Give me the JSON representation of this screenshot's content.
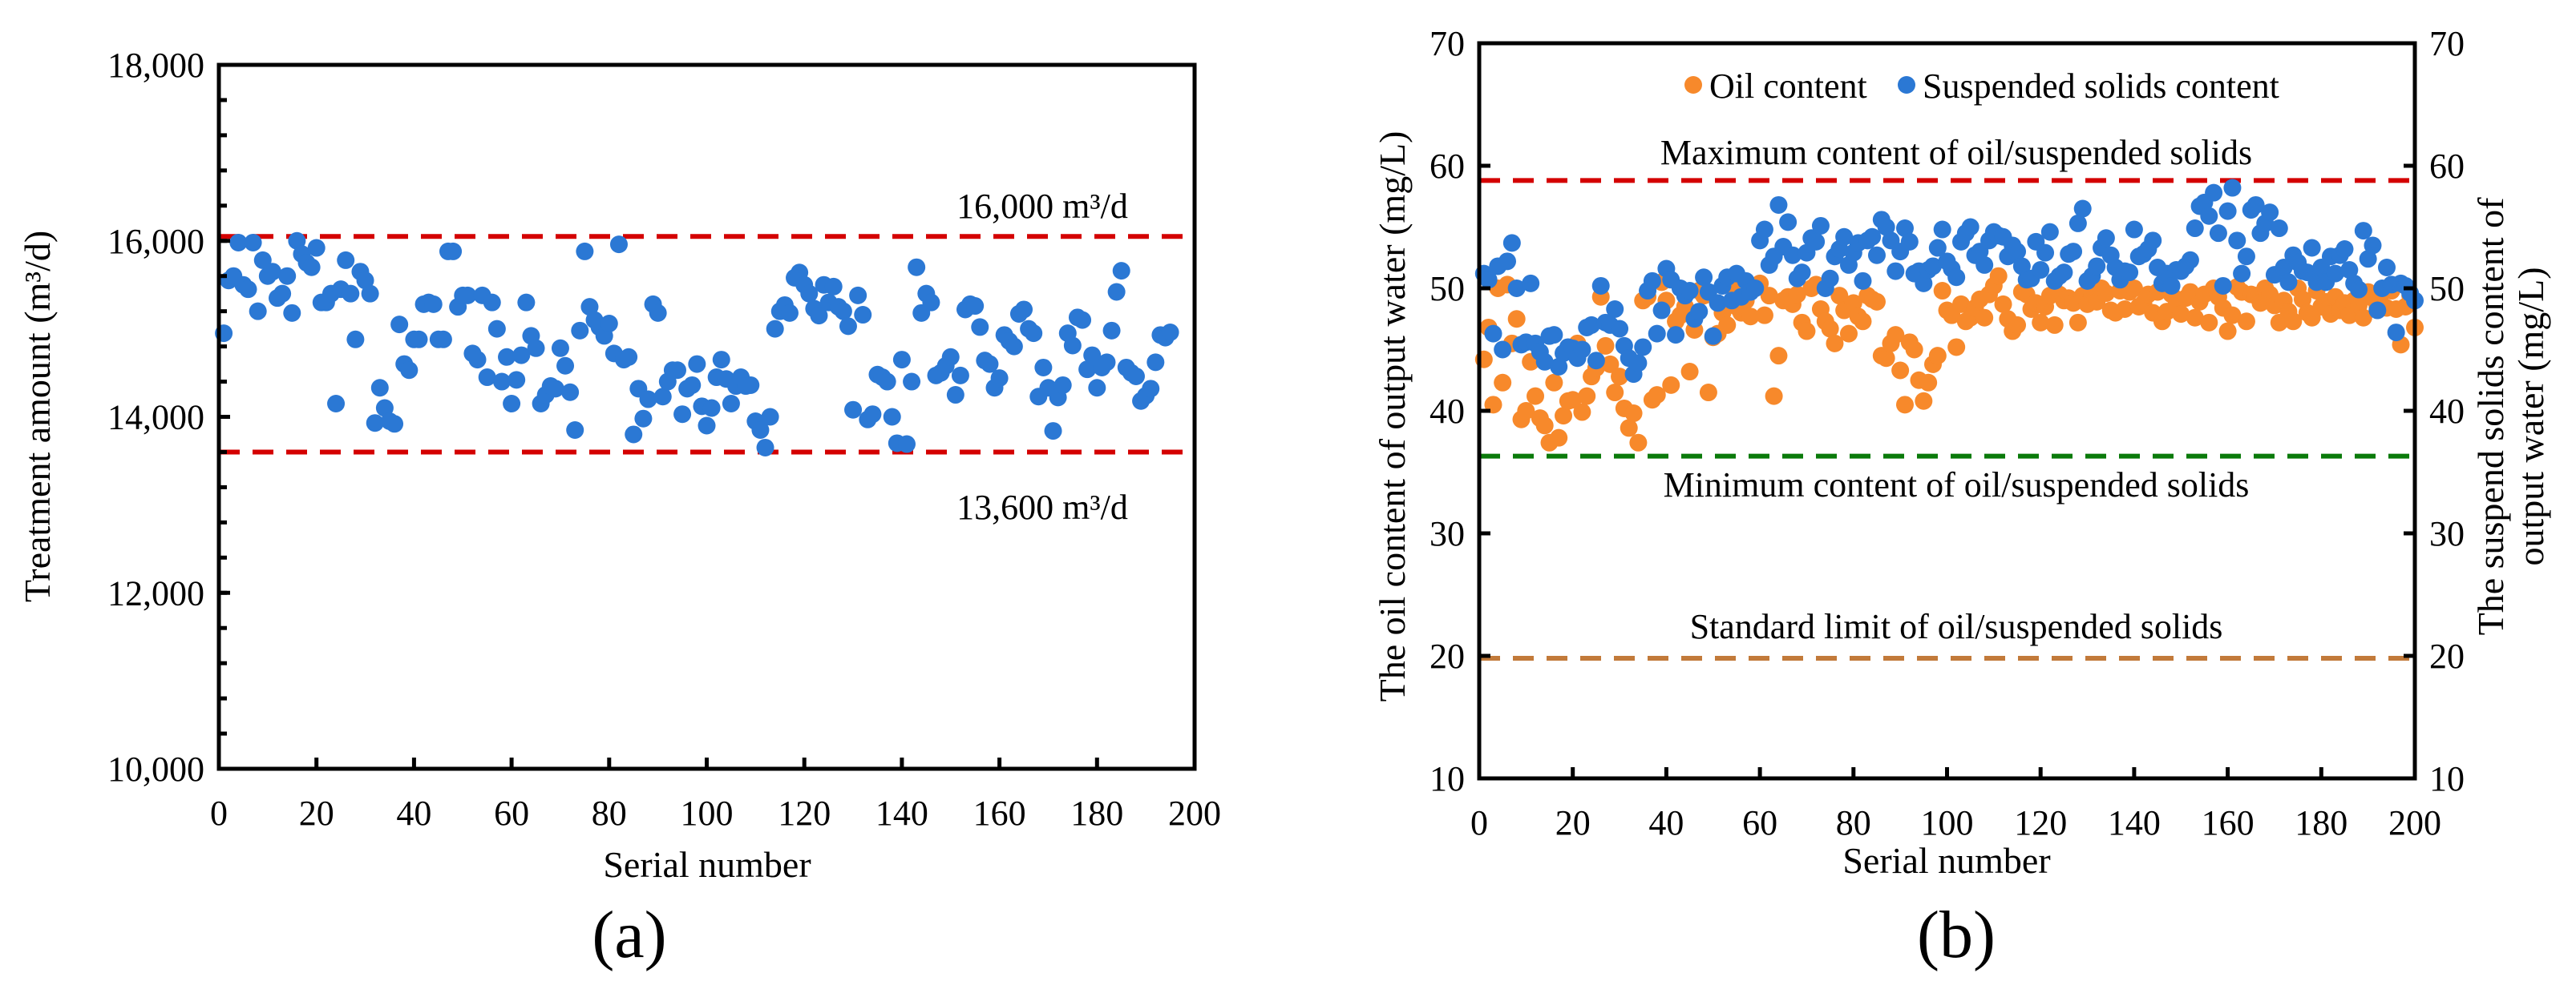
{
  "colors": {
    "blue": "#2B78D4",
    "orange": "#F7892B",
    "red": "#D40000",
    "green": "#0A7A0A",
    "brown": "#C27A3A"
  },
  "chart_data": [
    {
      "type": "scatter",
      "panel_label": "(a)",
      "xlabel": "Serial number",
      "ylabel": "Treatment amount (m³/d)",
      "xlim": [
        0,
        200
      ],
      "ylim": [
        10000,
        18000
      ],
      "xticks": [
        0,
        20,
        40,
        60,
        80,
        100,
        120,
        140,
        160,
        180,
        200
      ],
      "yticks": [
        10000,
        12000,
        14000,
        16000,
        18000
      ],
      "ytick_labels": [
        "10,000",
        "12,000",
        "14,000",
        "16,000",
        "18,000"
      ],
      "grid": false,
      "reference_lines": [
        {
          "value": 16050,
          "label": "16,000 m³/d",
          "color": "red"
        },
        {
          "value": 13600,
          "label": "13,600 m³/d",
          "color": "red"
        }
      ],
      "series": [
        {
          "name": "Treatment amount",
          "color": "blue",
          "values": [
            14950,
            15550,
            15600,
            15980,
            15500,
            15450,
            15980,
            15200,
            15780,
            15600,
            15650,
            15350,
            15400,
            15600,
            15180,
            16000,
            15850,
            15750,
            15700,
            15920,
            15300,
            15300,
            15400,
            14150,
            15450,
            15780,
            15400,
            14880,
            15650,
            15550,
            15400,
            13930,
            14330,
            14100,
            13950,
            13920,
            15050,
            14600,
            14530,
            14880,
            14880,
            15280,
            15300,
            15280,
            14880,
            14880,
            15880,
            15880,
            15250,
            15380,
            15380,
            14720,
            14650,
            15380,
            14450,
            15300,
            15000,
            14400,
            14680,
            14150,
            14420,
            14700,
            15300,
            14920,
            14780,
            14150,
            14250,
            14350,
            14320,
            14780,
            14580,
            14280,
            13850,
            14980,
            15880,
            15250,
            15100,
            15020,
            14920,
            15060,
            14720,
            15960,
            14650,
            14680,
            13800,
            14320,
            13980,
            14200,
            15280,
            15180,
            14230,
            14400,
            14530,
            14530,
            14030,
            14320,
            14360,
            14600,
            14120,
            13900,
            14100,
            14450,
            14650,
            14430,
            14150,
            14350,
            14450,
            14350,
            14360,
            13950,
            13850,
            13650,
            14000,
            15000,
            15200,
            15270,
            15180,
            15580,
            15640,
            15500,
            15400,
            15230,
            15150,
            15500,
            15300,
            15480,
            15250,
            15200,
            15030,
            14080,
            15380,
            15160,
            13970,
            14030,
            14480,
            14450,
            14400,
            14000,
            13700,
            14650,
            13690,
            14400,
            15700,
            15180,
            15400,
            15300,
            14470,
            14500,
            14580,
            14680,
            14250,
            14470,
            15220,
            15280,
            15260,
            15020,
            14640,
            14600,
            14330,
            14440,
            14930,
            14860,
            14800,
            15170,
            15220,
            15000,
            14950,
            14230,
            14560,
            14330,
            13840,
            14220,
            14360,
            14950,
            14810,
            15130,
            15100,
            14540,
            14700,
            14330,
            14560,
            14620,
            14980,
            15420,
            15660,
            14560,
            14500,
            14460,
            14180,
            14240,
            14320,
            14620,
            14930,
            14900,
            14960
          ]
        }
      ]
    },
    {
      "type": "scatter",
      "panel_label": "(b)",
      "xlabel": "Serial number",
      "ylabel": "The oil content of output water (mg/L)",
      "ylabel_right": [
        "The suspend solids content of",
        "output water (mg/L)"
      ],
      "xlim": [
        0,
        200
      ],
      "ylim": [
        10,
        70
      ],
      "xticks": [
        0,
        20,
        40,
        60,
        80,
        100,
        120,
        140,
        160,
        180,
        200
      ],
      "yticks": [
        10,
        20,
        30,
        40,
        50,
        60,
        70
      ],
      "grid": false,
      "legend_position": "top-center",
      "reference_lines": [
        {
          "value": 58.8,
          "label": "Maximum content of oil/suspended solids",
          "color": "red"
        },
        {
          "value": 36.3,
          "label": "Minimum content of oil/suspended solids",
          "color": "green"
        },
        {
          "value": 19.8,
          "label": "Standard limit of oil/suspended solids",
          "color": "brown"
        }
      ],
      "series": [
        {
          "name": "Oil content",
          "color": "orange",
          "values": [
            44.2,
            46.8,
            40.5,
            50.0,
            42.3,
            50.3,
            45.5,
            47.5,
            39.3,
            40.0,
            44.0,
            41.2,
            39.4,
            38.8,
            37.4,
            42.3,
            37.8,
            39.6,
            40.8,
            40.9,
            45.5,
            39.9,
            41.2,
            42.8,
            43.5,
            49.3,
            45.3,
            43.8,
            41.5,
            42.8,
            40.2,
            38.6,
            39.8,
            37.4,
            49.0,
            49.3,
            40.9,
            41.3,
            50.5,
            49.0,
            42.1,
            47.3,
            47.8,
            48.5,
            43.2,
            46.6,
            49.8,
            49.4,
            41.5,
            46.0,
            46.3,
            48.0,
            47.0,
            50.2,
            48.5,
            48.0,
            49.0,
            47.7,
            50.0,
            50.4,
            47.8,
            49.4,
            41.2,
            44.5,
            49.0,
            49.3,
            48.7,
            49.5,
            47.2,
            46.5,
            50.0,
            50.3,
            48.3,
            47.3,
            46.7,
            45.5,
            49.4,
            48.2,
            46.3,
            48.8,
            47.7,
            47.3,
            49.4,
            49.1,
            48.9,
            44.5,
            44.3,
            45.5,
            46.2,
            43.3,
            40.5,
            45.6,
            45.0,
            42.5,
            40.8,
            42.3,
            43.8,
            44.5,
            49.8,
            48.2,
            47.8,
            45.2,
            48.7,
            47.3,
            47.6,
            48.4,
            49.1,
            47.6,
            49.5,
            50.2,
            51.0,
            48.7,
            47.5,
            46.5,
            47.0,
            49.7,
            49.5,
            48.3,
            48.8,
            47.2,
            48.5,
            49.4,
            47.0,
            49.5,
            49.0,
            49.2,
            48.8,
            47.2,
            49.4,
            48.7,
            49.5,
            48.9,
            50.0,
            49.6,
            48.2,
            48.0,
            49.8,
            48.3,
            49.7,
            50.0,
            48.5,
            48.8,
            49.5,
            48.0,
            49.7,
            47.3,
            48.1,
            49.5,
            48.6,
            47.9,
            49.2,
            49.7,
            47.6,
            48.9,
            49.5,
            47.2,
            50.0,
            49.3,
            48.4,
            46.5,
            47.8,
            50.1,
            49.7,
            47.3,
            49.5,
            49.4,
            48.8,
            50.0,
            49.5,
            48.6,
            47.2,
            49.0,
            48.1,
            47.3,
            50.0,
            49.1,
            48.0,
            47.6,
            49.8,
            48.5,
            48.9,
            47.9,
            49.3,
            48.2,
            48.8,
            47.8,
            49.0,
            48.6,
            47.6,
            49.7,
            49.2,
            48.5,
            49.6,
            48.4,
            49.8,
            48.3,
            45.4,
            48.5,
            49.4,
            46.8
          ]
        },
        {
          "name": "Suspended solids content",
          "color": "blue",
          "values": [
            51.2,
            50.7,
            46.3,
            51.8,
            45.0,
            52.2,
            53.7,
            50.0,
            45.4,
            45.6,
            50.4,
            45.5,
            44.8,
            44.0,
            46.1,
            46.2,
            43.6,
            44.7,
            45.2,
            45.1,
            44.3,
            45.0,
            46.8,
            47.0,
            44.1,
            50.2,
            47.2,
            47.0,
            48.3,
            46.7,
            45.3,
            44.3,
            43.0,
            43.9,
            45.2,
            49.8,
            50.6,
            46.3,
            48.2,
            51.6,
            50.7,
            46.2,
            50.0,
            49.4,
            49.8,
            47.5,
            48.1,
            50.9,
            49.7,
            46.1,
            48.8,
            50.2,
            50.9,
            49.0,
            51.2,
            49.3,
            50.6,
            49.7,
            50.0,
            53.9,
            54.8,
            51.9,
            52.6,
            56.8,
            53.4,
            55.4,
            52.7,
            50.8,
            51.3,
            52.9,
            54.1,
            53.8,
            55.1,
            50.0,
            50.8,
            52.6,
            53.2,
            54.2,
            51.9,
            52.9,
            53.7,
            50.6,
            53.9,
            54.2,
            52.7,
            55.6,
            55.0,
            53.9,
            51.4,
            53.0,
            54.9,
            53.8,
            51.2,
            51.4,
            50.4,
            51.5,
            51.8,
            53.3,
            54.8,
            52.2,
            51.6,
            50.9,
            53.8,
            54.5,
            55.0,
            52.7,
            53.0,
            51.9,
            53.9,
            54.6,
            54.3,
            54.2,
            52.6,
            53.5,
            53.0,
            51.8,
            50.7,
            50.8,
            53.8,
            51.5,
            52.9,
            54.6,
            50.6,
            51.0,
            51.3,
            52.8,
            53.0,
            55.3,
            56.5,
            50.6,
            51.0,
            51.8,
            53.3,
            54.1,
            52.7,
            51.7,
            50.7,
            51.4,
            51.3,
            54.8,
            52.6,
            52.8,
            53.2,
            53.9,
            51.7,
            50.4,
            51.2,
            50.2,
            51.5,
            51.4,
            51.8,
            52.3,
            54.9,
            56.7,
            57.0,
            55.9,
            57.8,
            54.5,
            50.2,
            56.3,
            58.2,
            53.9,
            51.2,
            52.6,
            56.4,
            56.8,
            54.5,
            55.3,
            56.2,
            51.1,
            54.9,
            51.7,
            50.5,
            52.7,
            52.1,
            51.4,
            51.3,
            53.3,
            50.5,
            51.7,
            50.5,
            52.6,
            51.2,
            52.7,
            53.2,
            51.5,
            50.4,
            49.9,
            54.7,
            52.4,
            53.5,
            48.2,
            50.0,
            51.7,
            50.3,
            46.4,
            50.4,
            50.2,
            49.6,
            49.0
          ]
        }
      ]
    }
  ]
}
